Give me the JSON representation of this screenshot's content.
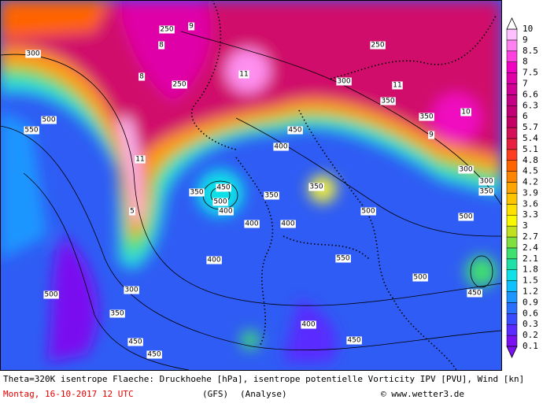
{
  "caption": {
    "line1": "Theta=320K isentrope Flaeche: Druckhoehe [hPa], isentrope potentielle Vorticity IPV [PVU], Wind [kn]",
    "date": "Montag, 16-10-2017  12 UTC",
    "model": "(GFS)",
    "run": "(Analyse)",
    "credit": "© www.wetter3.de"
  },
  "colorbar": {
    "labels": [
      "0.1",
      "0.2",
      "0.3",
      "0.6",
      "0.9",
      "1.2",
      "1.5",
      "1.8",
      "2.1",
      "2.4",
      "2.7",
      "3",
      "3.3",
      "3.6",
      "3.9",
      "4.2",
      "4.5",
      "4.8",
      "5.1",
      "5.4",
      "5.7",
      "6",
      "6.3",
      "6.6",
      "7",
      "7.5",
      "8",
      "8.5",
      "9",
      "10"
    ],
    "colors": [
      "#7a10f0",
      "#5a2cff",
      "#3a4cff",
      "#2a70ff",
      "#1e96ff",
      "#10c0ff",
      "#10e0e8",
      "#20e0a8",
      "#40e070",
      "#80e040",
      "#c0e020",
      "#f8f800",
      "#ffe000",
      "#ffc400",
      "#ffa400",
      "#ff8400",
      "#ff6400",
      "#ff4020",
      "#e82040",
      "#d41058",
      "#c40064",
      "#c00074",
      "#c40084",
      "#d00094",
      "#e000a8",
      "#f000c0",
      "#ff40e0",
      "#ff80f0",
      "#ffc0ff",
      "#ffffff"
    ]
  },
  "contour_labels": [
    "300",
    "250",
    "250",
    "350",
    "300",
    "250",
    "350",
    "300",
    "550",
    "500",
    "450",
    "400",
    "350",
    "450",
    "500",
    "400",
    "350",
    "350",
    "400",
    "500",
    "400",
    "300",
    "350",
    "400",
    "550",
    "500",
    "500",
    "450",
    "300",
    "350",
    "450",
    "450",
    "400",
    "450",
    "500",
    "11",
    "11",
    "10",
    "9",
    "8",
    "8",
    "11",
    "5",
    "9"
  ]
}
